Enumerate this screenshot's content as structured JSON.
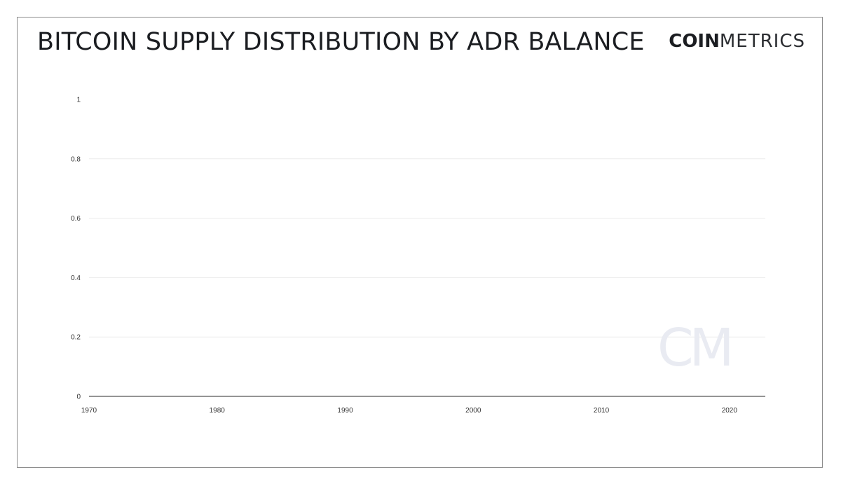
{
  "header": {
    "title": "BITCOIN SUPPLY DISTRIBUTION BY ADR BALANCE",
    "brand_bold": "COIN",
    "brand_light": "METRICS",
    "watermark": "CM"
  },
  "chart_data": {
    "type": "line",
    "title": "BITCOIN SUPPLY DISTRIBUTION BY ADR BALANCE",
    "xlabel": "",
    "ylabel": "",
    "x_ticks": [
      "1970",
      "1980",
      "1990",
      "2000",
      "2010",
      "2020"
    ],
    "y_ticks": [
      "0",
      "0.2",
      "0.4",
      "0.6",
      "0.8",
      "1"
    ],
    "xlim": [
      1970,
      2022.8
    ],
    "ylim": [
      0,
      1
    ],
    "grid": true,
    "series": [],
    "colors": {
      "grid": "#ececec",
      "axis": "#555555",
      "text": "#333333"
    }
  }
}
